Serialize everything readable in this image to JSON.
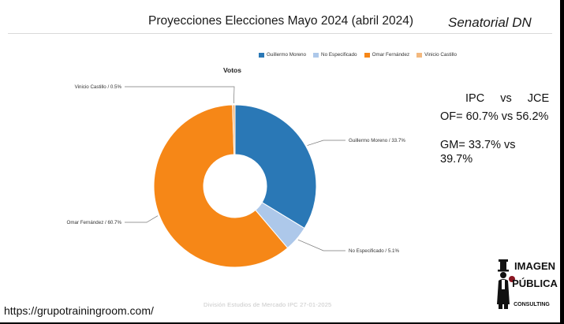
{
  "header": {
    "title": "Proyecciones Elecciones Mayo 2024 (abril 2024)",
    "subtitle": "Senatorial DN"
  },
  "chart_data": {
    "type": "pie",
    "title": "Votos",
    "donut": true,
    "legend_position": "top",
    "slices": [
      {
        "name": "Guillermo Moreno",
        "value": 33.7,
        "label": "Guillermo Moreno / 33.7%",
        "color": "#2a78b6"
      },
      {
        "name": "No Especificado",
        "value": 5.1,
        "label": "No Especificado / 5.1%",
        "color": "#adc8ea"
      },
      {
        "name": "Omar Fernández",
        "value": 60.7,
        "label": "Omar Fernández / 60.7%",
        "color": "#f68717"
      },
      {
        "name": "Vinicio Castillo",
        "value": 0.5,
        "label": "Vinicio Castillo / 0.5%",
        "color": "#f3b87e"
      }
    ]
  },
  "comparison": {
    "header_left": "IPC",
    "header_mid": "vs",
    "header_right": "JCE",
    "of_text": "OF= 60.7% vs 56.2%",
    "gm_text": "GM= 33.7% vs 39.7%"
  },
  "footer": {
    "credit": "División Estudios de Mercado IPC 27-01-2025",
    "url": "https://grupotrainingroom.com/"
  },
  "logo": {
    "line1": "IMAGEN",
    "line2": "PÚBLICA",
    "line3": "CONSULTING"
  }
}
